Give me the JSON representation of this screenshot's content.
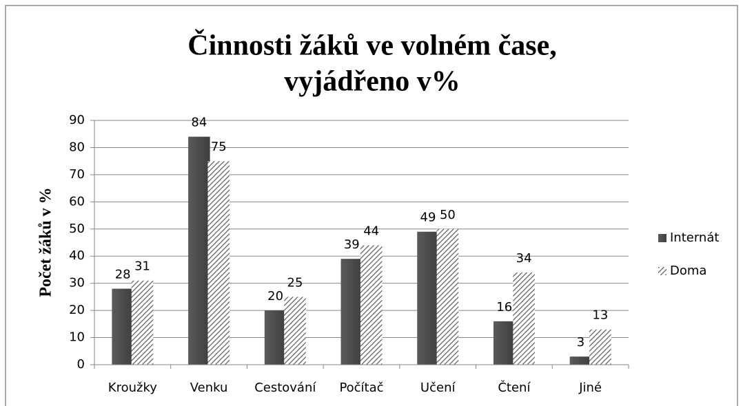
{
  "chart_data": {
    "type": "bar",
    "title": [
      "Činnosti žáků ve volném čase,",
      "vyjádřeno v%"
    ],
    "y_label": "Počet žáků v %",
    "categories": [
      "Kroužky",
      "Venku",
      "Cestování",
      "Počítač",
      "Učení",
      "Čtení",
      "Jiné"
    ],
    "series": [
      {
        "name": "Internát",
        "color": "#4d4d4d",
        "pattern": "solid",
        "values": [
          28,
          84,
          20,
          39,
          49,
          16,
          3
        ]
      },
      {
        "name": "Doma",
        "color": "#595959",
        "pattern": "hatch",
        "values": [
          31,
          75,
          25,
          44,
          50,
          34,
          13
        ]
      }
    ],
    "ylim": [
      0,
      90
    ],
    "yticks": [
      0,
      10,
      20,
      30,
      40,
      50,
      60,
      70,
      80,
      90
    ],
    "grid": true,
    "legend": "right"
  }
}
